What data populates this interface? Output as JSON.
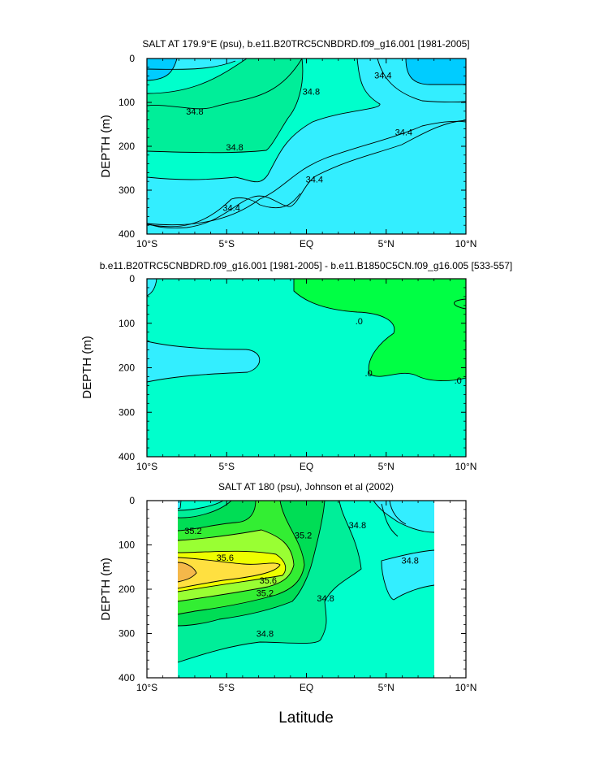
{
  "figure": {
    "xlabel": "Latitude"
  },
  "chart_data": [
    {
      "type": "contour",
      "title": "SALT AT 179.9°E (psu), b.e11.B20TRC5CNBDRD.f09_g16.001 [1981-2005]",
      "xlabel": "",
      "ylabel": "DEPTH (m)",
      "xlim": [
        -10,
        10
      ],
      "ylim": [
        400,
        0
      ],
      "xticks": [
        "10°S",
        "5°S",
        "EQ",
        "5°N",
        "10°N"
      ],
      "yticks": [
        "0",
        "100",
        "200",
        "300",
        "400"
      ],
      "contour_interval": 0.2,
      "contour_labels": [
        {
          "text": "34.8",
          "x": -7.0,
          "y": 120
        },
        {
          "text": "34.8",
          "x": -4.5,
          "y": 202
        },
        {
          "text": "34.8",
          "x": 0.3,
          "y": 75
        },
        {
          "text": "34.4",
          "x": 4.8,
          "y": 38
        },
        {
          "text": "34.4",
          "x": 6.1,
          "y": 168
        },
        {
          "text": "34.4",
          "x": 0.5,
          "y": 275
        },
        {
          "text": "34.4",
          "x": -4.7,
          "y": 340
        }
      ],
      "colors": {
        "low": "#00CCFF",
        "mid": "#33EEFF",
        "mid2": "#00FFCC",
        "high": "#00EE99"
      }
    },
    {
      "type": "contour",
      "title": "b.e11.B20TRC5CNBDRD.f09_g16.001 [1981-2005] - b.e11.B1850C5CN.f09_g16.005 [533-557]",
      "xlabel": "",
      "ylabel": "DEPTH (m)",
      "xlim": [
        -10,
        10
      ],
      "ylim": [
        400,
        0
      ],
      "xticks": [
        "10°S",
        "5°S",
        "EQ",
        "5°N",
        "10°N"
      ],
      "yticks": [
        "0",
        "100",
        "200",
        "300",
        "400"
      ],
      "contour_labels": [
        {
          "text": ".0",
          "x": 3.3,
          "y": 95
        },
        {
          "text": ".0",
          "x": 3.9,
          "y": 212
        },
        {
          "text": ".0",
          "x": 9.5,
          "y": 228
        }
      ],
      "colors": {
        "background": "#00FFCC",
        "positive": "#00FF44",
        "negative": "#33EEFF"
      }
    },
    {
      "type": "contour",
      "title": "SALT AT 180 (psu), Johnson et al (2002)",
      "xlabel": "Latitude",
      "ylabel": "DEPTH (m)",
      "xlim": [
        -10,
        10
      ],
      "ylim": [
        400,
        0
      ],
      "data_xrange": [
        -8,
        8
      ],
      "xticks": [
        "10°S",
        "5°S",
        "EQ",
        "5°N",
        "10°N"
      ],
      "yticks": [
        "0",
        "100",
        "200",
        "300",
        "400"
      ],
      "contour_interval": 0.2,
      "contour_labels": [
        {
          "text": "35.2",
          "x": -7.1,
          "y": 68
        },
        {
          "text": "35.6",
          "x": -5.1,
          "y": 128
        },
        {
          "text": "35.6",
          "x": -2.4,
          "y": 180
        },
        {
          "text": "35.2",
          "x": -2.6,
          "y": 208
        },
        {
          "text": "35.2",
          "x": -0.2,
          "y": 78
        },
        {
          "text": "34.8",
          "x": 1.2,
          "y": 220
        },
        {
          "text": "34.8",
          "x": -2.6,
          "y": 300
        },
        {
          "text": "34.8",
          "x": 3.2,
          "y": 55
        },
        {
          "text": "34.8",
          "x": 6.5,
          "y": 135
        }
      ],
      "colors": {
        "c1": "#33EEFF",
        "c2": "#00FFCC",
        "c3": "#00EE99",
        "c4": "#00DD55",
        "c5": "#33EE33",
        "c6": "#99FF33",
        "c7": "#EEFF00",
        "c8": "#FFE040",
        "c9": "#F5B84A"
      }
    }
  ]
}
